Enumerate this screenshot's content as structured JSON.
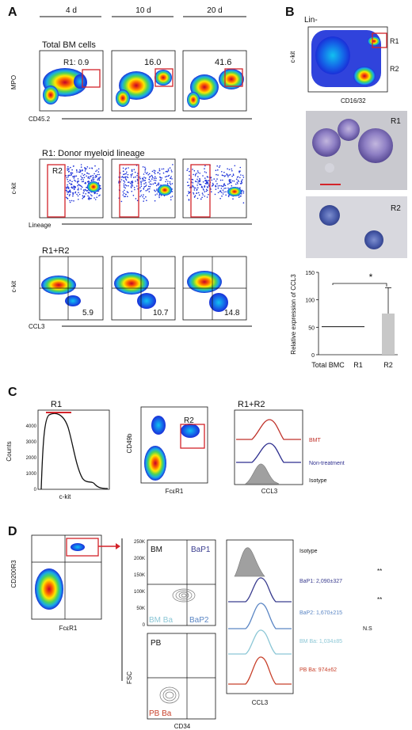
{
  "panels": {
    "A": {
      "letter": "A",
      "timepoints": [
        "4 d",
        "10 d",
        "20 d"
      ],
      "row1": {
        "title": "Total BM cells",
        "gate_label": "R1: 0.9",
        "values": [
          "16.0",
          "41.6"
        ],
        "ylabel": "MPO",
        "xlabel": "CD45.2"
      },
      "row2": {
        "title": "R1: Donor myeloid lineage",
        "gate_label": "R2",
        "ylabel": "c-kit",
        "xlabel": "Lineage"
      },
      "row3": {
        "title": "R1+R2",
        "values": [
          "5.9",
          "10.7",
          "14.8"
        ],
        "ylabel": "c-kit",
        "xlabel": "CCL3"
      }
    },
    "B": {
      "letter": "B",
      "lin_label": "Lin-",
      "ylabel": "c-kit",
      "xlabel": "CD16/32",
      "gates": [
        "R1",
        "R2"
      ],
      "cell_labels": [
        "R1",
        "R2"
      ],
      "bar_chart": {
        "ylabel": "Relative expression of CCL3",
        "yticks": [
          "0",
          "50",
          "100",
          "150"
        ],
        "significance": "*"
      }
    },
    "C": {
      "letter": "C",
      "hist1": {
        "title": "R1",
        "ylabel": "Counts",
        "xlabel": "c-kit",
        "yticks": [
          "0",
          "1000",
          "2000",
          "3000",
          "4000"
        ]
      },
      "dot": {
        "gate_label": "R2",
        "ylabel": "CD49b",
        "xlabel": "FcεR1"
      },
      "hist2": {
        "title": "R1+R2",
        "xlabel": "CCL3",
        "legend": [
          "BMT",
          "Non-treatment",
          "Isotype"
        ]
      }
    },
    "D": {
      "letter": "D",
      "dot": {
        "ylabel": "CD200R3",
        "xlabel": "FcεR1"
      },
      "bm": {
        "label": "BM",
        "quadrants": [
          "BaP1",
          "BM Ba",
          "BaP2"
        ],
        "yticks": [
          "0",
          "50K",
          "100K",
          "150K",
          "200K",
          "250K"
        ]
      },
      "pb": {
        "label": "PB",
        "quadrant": "PB Ba",
        "ylabel": "FSC",
        "xlabel": "CD34"
      },
      "hist": {
        "xlabel": "CCL3",
        "legend": [
          "Isotype",
          "BaP1: 2,090±327",
          "BaP2: 1,670±215",
          "BM Ba: 1,034±85",
          "PB Ba: 974±62"
        ],
        "significance": [
          "**",
          "**",
          "N.S"
        ]
      }
    }
  },
  "chart_data": [
    {
      "type": "bar",
      "categories": [
        "Total BMC",
        "R1",
        "R2"
      ],
      "values": [
        51,
        51,
        75
      ],
      "error_upper": [
        null,
        null,
        122
      ],
      "ylim": [
        0,
        150
      ],
      "title": "",
      "xlabel": "",
      "ylabel": "Relative expression of CCL3"
    }
  ],
  "colors": {
    "gate": "#d3232a",
    "bmt": "#c0322a",
    "non_treatment": "#2e2f8f",
    "isotype": "#a0a0a0",
    "bap1": "#3a3d8f",
    "bap2": "#5b86c4",
    "bm_ba": "#8cc7d6",
    "pb_ba": "#c8402a"
  }
}
